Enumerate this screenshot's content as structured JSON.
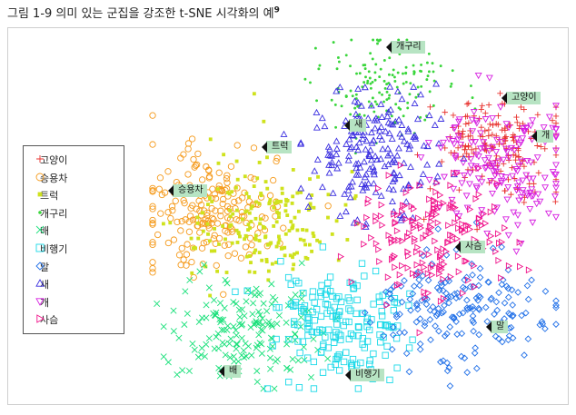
{
  "caption": {
    "text": "그림 1-9 의미 있는 군집을 강조한 t-SNE 시각화의 예",
    "footnote": "9"
  },
  "chart_data": {
    "type": "scatter",
    "title": "",
    "xlabel": "",
    "ylabel": "",
    "grid": false,
    "legend_placement": "left",
    "series": [
      {
        "name": "고양이",
        "marker": "plus",
        "color": "#e8322e",
        "cluster_label": "고양이"
      },
      {
        "name": "승용차",
        "marker": "circle",
        "color": "#f59a1b",
        "cluster_label": "승용차"
      },
      {
        "name": "트럭",
        "marker": "square-filled",
        "color": "#cfe21d",
        "cluster_label": "트럭"
      },
      {
        "name": "개구리",
        "marker": "dot",
        "color": "#3ad63c",
        "cluster_label": "개구리"
      },
      {
        "name": "배",
        "marker": "x",
        "color": "#19e07a",
        "cluster_label": "배"
      },
      {
        "name": "비행기",
        "marker": "square",
        "color": "#1ad9e8",
        "cluster_label": "비행기"
      },
      {
        "name": "말",
        "marker": "diamond",
        "color": "#1f6fe8",
        "cluster_label": "말"
      },
      {
        "name": "새",
        "marker": "triangle",
        "color": "#3a2ee0",
        "cluster_label": "새"
      },
      {
        "name": "개",
        "marker": "triangle-down",
        "color": "#d61ee0",
        "cluster_label": "개"
      },
      {
        "name": "사슴",
        "marker": "triangle-right",
        "color": "#f0128a",
        "cluster_label": "사슴"
      }
    ]
  }
}
